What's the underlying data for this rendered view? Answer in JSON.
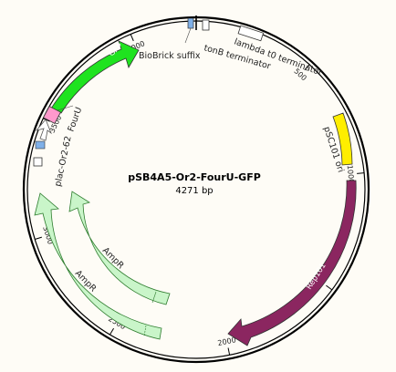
{
  "plasmid": {
    "name": "pSB4A5-Or2-FourU-GFP",
    "length_label": "4271 bp",
    "length_bp": 4271
  },
  "ticks": [
    {
      "bp": 500,
      "label": "500"
    },
    {
      "bp": 1000,
      "label": "1000"
    },
    {
      "bp": 1500,
      "label": "1500"
    },
    {
      "bp": 2000,
      "label": "2000"
    },
    {
      "bp": 2500,
      "label": "2500"
    },
    {
      "bp": 3000,
      "label": "3000"
    },
    {
      "bp": 3500,
      "label": "3500"
    },
    {
      "bp": 4000,
      "label": "4000"
    }
  ],
  "features": [
    {
      "name": "BioBrick suffix",
      "color": "#7fb0e8"
    },
    {
      "name": "tonB terminator",
      "color": "#ffffff"
    },
    {
      "name": "lambda t0 terminator",
      "color": "#ffffff"
    },
    {
      "name": "pSC101 ori",
      "color": "#ffee00"
    },
    {
      "name": "Rep101",
      "color": "#8b2660"
    },
    {
      "name": "AmpR",
      "color": "#c9f5c9"
    },
    {
      "name": "AmpR",
      "color": "#c9f5c9"
    },
    {
      "name": "plac-Or2-62",
      "color": "#ffffff"
    },
    {
      "name": "FourU",
      "color": "#ff99cc"
    },
    {
      "name": "GFP",
      "color": "#1fe31f"
    }
  ]
}
